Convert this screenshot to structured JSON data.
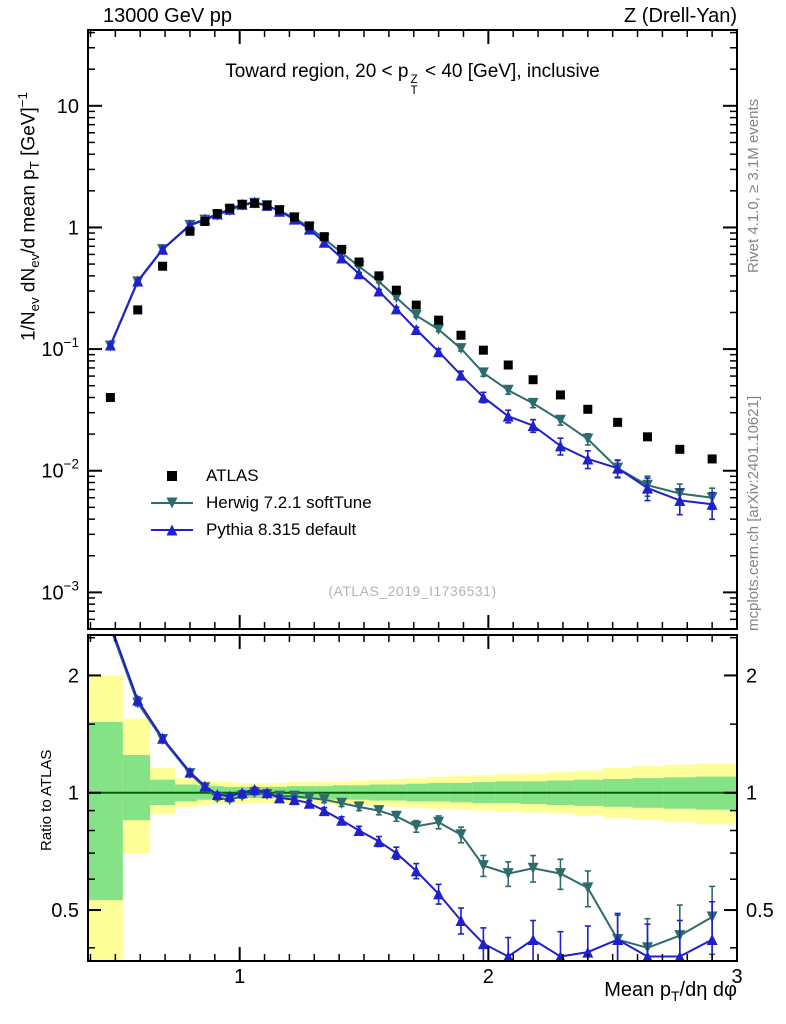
{
  "header": {
    "left": "13000 GeV pp",
    "right": "Z (Drell-Yan)"
  },
  "title": {
    "pre": "Toward region, 20 < p",
    "sup": "Z",
    "sub": "T",
    "post": " < 40 [GeV], inclusive"
  },
  "watermark": "(ATLAS_2019_I1736531)",
  "side_texts": {
    "top": "Rivet 4.1.0, ≥ 3.1M events",
    "bottom": "mcplots.cern.ch [arXiv:2401.10621]"
  },
  "labels": {
    "ylabel_main_segments": [
      {
        "t": "1/N"
      },
      {
        "sub": "ev"
      },
      {
        "t": " dN"
      },
      {
        "sub": "ev"
      },
      {
        "t": "/d mean p"
      },
      {
        "sub": "T"
      },
      {
        "t": " [GeV]"
      },
      {
        "sup": "−1"
      }
    ],
    "xlabel_segments": [
      {
        "t": "Mean p"
      },
      {
        "sub": "T"
      },
      {
        "t": "/dη dφ"
      }
    ],
    "ratio_ylabel": "Ratio to ATLAS"
  },
  "chart_data": [
    {
      "id": "main",
      "type": "scatter",
      "title": "Toward region, 20 < pT(Z) < 40 [GeV], inclusive",
      "xlabel": "Mean pT/dη dφ",
      "ylabel": "1/Nev dNev/d mean pT [GeV]^-1",
      "xscale": "linear",
      "yscale": "log",
      "xlim": [
        0.39,
        3.0
      ],
      "ylim": [
        0.0005,
        42
      ],
      "legend_position": "middle-left",
      "grid": false,
      "xticks": [
        {
          "v": 1,
          "label": "1"
        },
        {
          "v": 2,
          "label": "2"
        },
        {
          "v": 3,
          "label": "3"
        }
      ],
      "yticks": [
        {
          "v": 10,
          "label": "10"
        },
        {
          "v": 1,
          "label": "1"
        },
        {
          "v": 0.1,
          "mant": "10",
          "exp": "−1"
        },
        {
          "v": 0.01,
          "mant": "10",
          "exp": "−2"
        },
        {
          "v": 0.001,
          "mant": "10",
          "exp": "−3"
        }
      ],
      "x": [
        0.48,
        0.59,
        0.69,
        0.8,
        0.86,
        0.91,
        0.96,
        1.01,
        1.06,
        1.11,
        1.16,
        1.22,
        1.28,
        1.34,
        1.41,
        1.48,
        1.56,
        1.63,
        1.71,
        1.8,
        1.89,
        1.98,
        2.08,
        2.18,
        2.29,
        2.4,
        2.52,
        2.64,
        2.77,
        2.9
      ],
      "series": [
        {
          "name": "ATLAS",
          "color": "#000000",
          "marker": "square",
          "line": false,
          "yerr_frac": 0.05,
          "y": [
            0.04,
            0.21,
            0.48,
            0.93,
            1.12,
            1.3,
            1.44,
            1.55,
            1.58,
            1.52,
            1.4,
            1.22,
            1.03,
            0.84,
            0.66,
            0.52,
            0.4,
            0.305,
            0.23,
            0.173,
            0.13,
            0.098,
            0.074,
            0.056,
            0.042,
            0.032,
            0.025,
            0.019,
            0.015,
            0.0125
          ]
        },
        {
          "name": "Herwig 7.2.1 softTune",
          "color": "#2e6c6c",
          "marker": "triangle-down",
          "line": true,
          "y": [
            0.106,
            0.357,
            0.658,
            1.04,
            1.15,
            1.26,
            1.38,
            1.52,
            1.58,
            1.51,
            1.37,
            1.2,
            1.0,
            0.806,
            0.62,
            0.478,
            0.36,
            0.265,
            0.189,
            0.145,
            0.101,
            0.0637,
            0.0459,
            0.0358,
            0.026,
            0.0182,
            0.0105,
            0.0076,
            0.0065,
            0.006
          ]
        },
        {
          "name": "Pythia 8.315 default",
          "color": "#2020cc",
          "marker": "triangle-up",
          "line": true,
          "y": [
            0.108,
            0.363,
            0.662,
            1.05,
            1.17,
            1.29,
            1.41,
            1.55,
            1.61,
            1.52,
            1.36,
            1.17,
            0.968,
            0.756,
            0.561,
            0.416,
            0.3,
            0.214,
            0.145,
            0.0952,
            0.0611,
            0.0402,
            0.0281,
            0.0235,
            0.016,
            0.0125,
            0.0105,
            0.0072,
            0.0057,
            0.0053
          ]
        }
      ]
    },
    {
      "id": "ratio",
      "type": "scatter",
      "ylabel": "Ratio to ATLAS",
      "yscale": "log",
      "ylim": [
        0.37,
        2.54
      ],
      "unity_line_color": "#006400",
      "yticks": [
        {
          "v": 2,
          "label": "2"
        },
        {
          "v": 1,
          "label": "1"
        },
        {
          "v": 0.5,
          "label": "0.5"
        }
      ],
      "yticks_minor": [
        2.5,
        1.5,
        0.9,
        0.8,
        0.7,
        0.6,
        0.4
      ],
      "series": [
        {
          "name": "Herwig 7.2.1 softTune",
          "color": "#2e6c6c",
          "marker": "triangle-down",
          "line": true,
          "y": [
            2.65,
            1.7,
            1.37,
            1.12,
            1.03,
            0.97,
            0.96,
            0.98,
            1.0,
            0.99,
            0.98,
            0.98,
            0.97,
            0.96,
            0.94,
            0.92,
            0.9,
            0.87,
            0.82,
            0.84,
            0.78,
            0.65,
            0.62,
            0.64,
            0.62,
            0.57,
            0.42,
            0.4,
            0.43,
            0.48
          ],
          "yerr": [
            0.08,
            0.03,
            0.02,
            0.015,
            0.012,
            0.012,
            0.012,
            0.012,
            0.012,
            0.012,
            0.013,
            0.014,
            0.015,
            0.016,
            0.018,
            0.02,
            0.022,
            0.025,
            0.028,
            0.032,
            0.036,
            0.04,
            0.045,
            0.05,
            0.055,
            0.06,
            0.065,
            0.075,
            0.085,
            0.095
          ]
        },
        {
          "name": "Pythia 8.315 default",
          "color": "#2020cc",
          "marker": "triangle-up",
          "line": true,
          "y": [
            2.7,
            1.73,
            1.38,
            1.13,
            1.04,
            0.99,
            0.98,
            1.0,
            1.02,
            1.0,
            0.97,
            0.96,
            0.94,
            0.9,
            0.85,
            0.8,
            0.75,
            0.7,
            0.63,
            0.55,
            0.47,
            0.41,
            0.38,
            0.42,
            0.38,
            0.39,
            0.42,
            0.38,
            0.38,
            0.42
          ],
          "yerr": [
            0.08,
            0.03,
            0.02,
            0.015,
            0.012,
            0.012,
            0.012,
            0.012,
            0.012,
            0.012,
            0.013,
            0.014,
            0.015,
            0.016,
            0.018,
            0.02,
            0.022,
            0.025,
            0.028,
            0.032,
            0.036,
            0.04,
            0.045,
            0.05,
            0.06,
            0.065,
            0.07,
            0.08,
            0.09,
            0.105
          ]
        }
      ],
      "bands": {
        "colors": {
          "outer": "#ffff99",
          "inner": "#86e286"
        },
        "edges": [
          0.39,
          0.53,
          0.64,
          0.74,
          0.83,
          0.885,
          0.935,
          0.985,
          1.035,
          1.085,
          1.135,
          1.19,
          1.25,
          1.31,
          1.375,
          1.445,
          1.52,
          1.595,
          1.67,
          1.755,
          1.845,
          1.935,
          2.03,
          2.13,
          2.235,
          2.345,
          2.46,
          2.58,
          2.705,
          2.835,
          3.0
        ],
        "outer_lo": [
          0.28,
          0.7,
          0.88,
          0.92,
          0.93,
          0.935,
          0.94,
          0.94,
          0.94,
          0.94,
          0.94,
          0.94,
          0.935,
          0.935,
          0.93,
          0.93,
          0.925,
          0.92,
          0.915,
          0.91,
          0.905,
          0.9,
          0.895,
          0.89,
          0.885,
          0.875,
          0.86,
          0.85,
          0.84,
          0.83
        ],
        "outer_hi": [
          2.0,
          1.55,
          1.16,
          1.09,
          1.075,
          1.07,
          1.065,
          1.06,
          1.06,
          1.06,
          1.06,
          1.065,
          1.065,
          1.07,
          1.07,
          1.075,
          1.08,
          1.085,
          1.09,
          1.1,
          1.105,
          1.11,
          1.115,
          1.12,
          1.13,
          1.14,
          1.16,
          1.17,
          1.18,
          1.19
        ],
        "inner_lo": [
          0.53,
          0.85,
          0.93,
          0.95,
          0.96,
          0.965,
          0.965,
          0.97,
          0.97,
          0.97,
          0.97,
          0.965,
          0.965,
          0.96,
          0.96,
          0.96,
          0.955,
          0.955,
          0.95,
          0.95,
          0.945,
          0.94,
          0.94,
          0.935,
          0.93,
          0.925,
          0.92,
          0.915,
          0.91,
          0.905
        ],
        "inner_hi": [
          1.52,
          1.25,
          1.08,
          1.05,
          1.045,
          1.04,
          1.035,
          1.035,
          1.035,
          1.035,
          1.035,
          1.04,
          1.04,
          1.04,
          1.045,
          1.045,
          1.05,
          1.05,
          1.055,
          1.06,
          1.06,
          1.065,
          1.07,
          1.07,
          1.075,
          1.08,
          1.085,
          1.09,
          1.095,
          1.1
        ]
      }
    }
  ]
}
